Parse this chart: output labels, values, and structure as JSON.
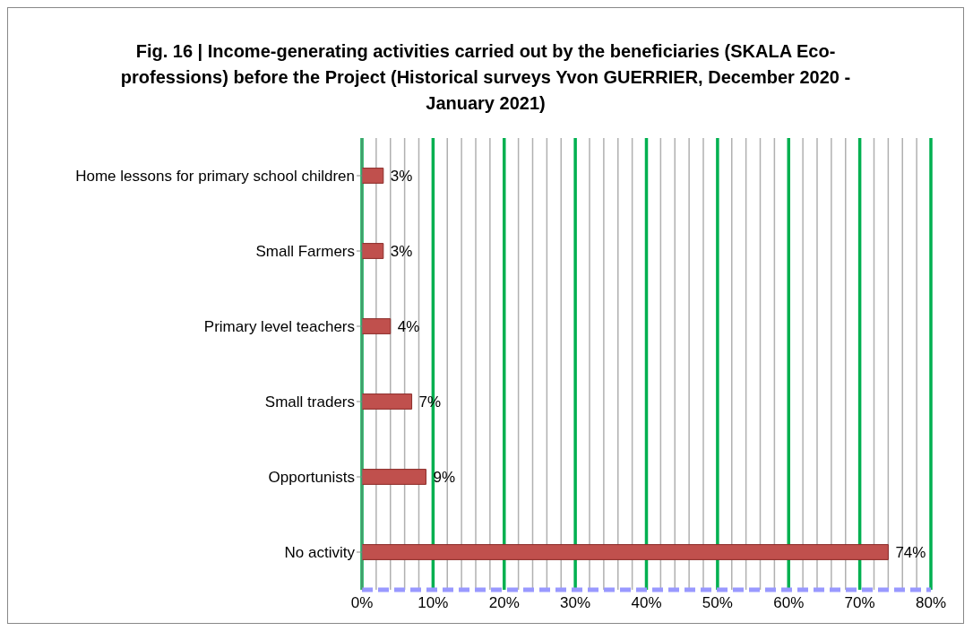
{
  "chart_data": {
    "type": "bar",
    "orientation": "horizontal",
    "title": "Fig. 16 | Income-generating activities carried out by the beneficiaries (SKALA Eco-professions) before the Project (Historical surveys Yvon GUERRIER, December 2020 - January 2021)",
    "categories": [
      "Home lessons for primary school children",
      "Small Farmers",
      "Primary level teachers",
      "Small traders",
      "Opportunists",
      "No activity"
    ],
    "values": [
      3,
      3,
      4,
      7,
      9,
      74
    ],
    "value_labels": [
      "3%",
      "3%",
      "4%",
      "7%",
      "9%",
      "74%"
    ],
    "color": "#c0504d",
    "xlim": [
      0,
      80
    ],
    "xticks": [
      {
        "value": 0,
        "label": "0%"
      },
      {
        "value": 2,
        "label": null
      },
      {
        "value": 4,
        "label": null
      },
      {
        "value": 6,
        "label": null
      },
      {
        "value": 8,
        "label": null
      },
      {
        "value": 10,
        "label": "10%"
      },
      {
        "value": 12,
        "label": null
      },
      {
        "value": 14,
        "label": null
      },
      {
        "value": 16,
        "label": null
      },
      {
        "value": 18,
        "label": null
      },
      {
        "value": 20,
        "label": "20%"
      },
      {
        "value": 22,
        "label": null
      },
      {
        "value": 24,
        "label": null
      },
      {
        "value": 26,
        "label": null
      },
      {
        "value": 28,
        "label": null
      },
      {
        "value": 30,
        "label": "30%"
      },
      {
        "value": 32,
        "label": null
      },
      {
        "value": 34,
        "label": null
      },
      {
        "value": 36,
        "label": null
      },
      {
        "value": 38,
        "label": null
      },
      {
        "value": 40,
        "label": "40%"
      },
      {
        "value": 42,
        "label": null
      },
      {
        "value": 44,
        "label": null
      },
      {
        "value": 46,
        "label": null
      },
      {
        "value": 48,
        "label": null
      },
      {
        "value": 50,
        "label": "50%"
      },
      {
        "value": 52,
        "label": null
      },
      {
        "value": 54,
        "label": null
      },
      {
        "value": 56,
        "label": null
      },
      {
        "value": 58,
        "label": null
      },
      {
        "value": 60,
        "label": "60%"
      },
      {
        "value": 62,
        "label": null
      },
      {
        "value": 64,
        "label": null
      },
      {
        "value": 66,
        "label": null
      },
      {
        "value": 68,
        "label": null
      },
      {
        "value": 70,
        "label": "70%"
      },
      {
        "value": 72,
        "label": null
      },
      {
        "value": 74,
        "label": null
      },
      {
        "value": 76,
        "label": null
      },
      {
        "value": 78,
        "label": null
      },
      {
        "value": 80,
        "label": "80%"
      }
    ],
    "grid": "x"
  }
}
